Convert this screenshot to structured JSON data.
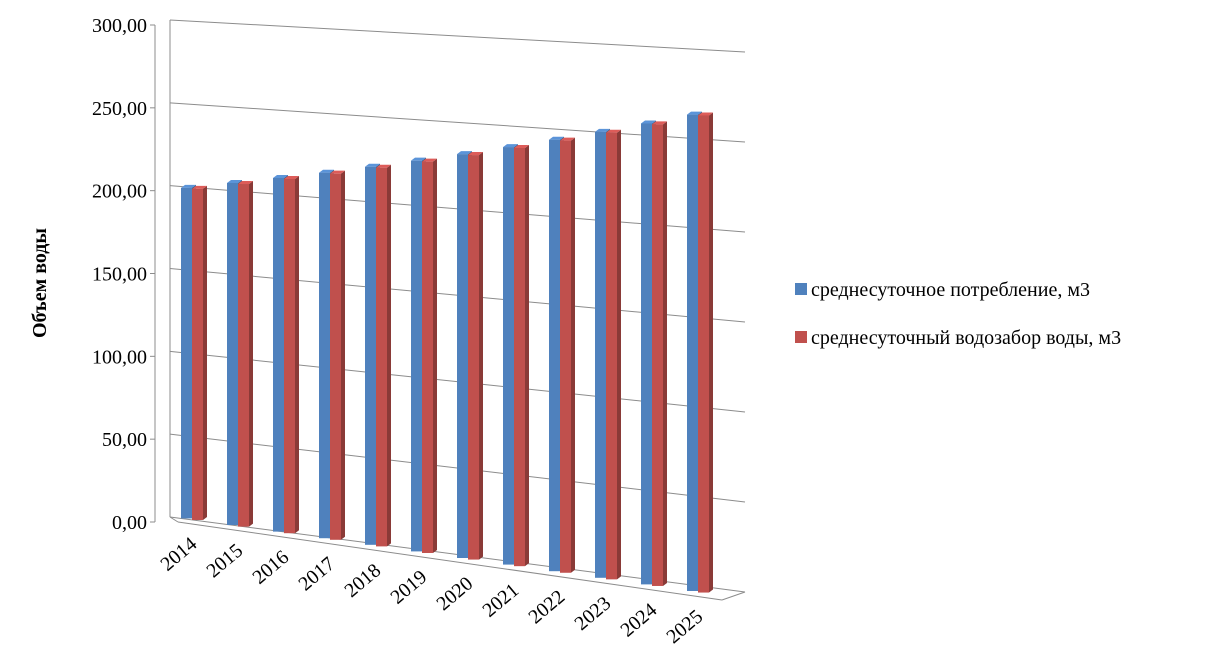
{
  "chart_data": {
    "type": "bar",
    "title": "",
    "xlabel": "",
    "ylabel": "Объем воды",
    "ylim": [
      0,
      300
    ],
    "y_ticks": [
      "0,00",
      "50,00",
      "100,00",
      "150,00",
      "200,00",
      "250,00",
      "300,00"
    ],
    "categories": [
      "2014",
      "2015",
      "2016",
      "2017",
      "2018",
      "2019",
      "2020",
      "2021",
      "2022",
      "2023",
      "2024",
      "2025"
    ],
    "series": [
      {
        "name": "среднесуточное потребление, м3",
        "color": "#4F81BD",
        "values": [
          199.2,
          204.7,
          210.2,
          215.8,
          221.7,
          227.6,
          233.7,
          240.0,
          246.4,
          253.0,
          259.8,
          266.8
        ]
      },
      {
        "name": "среднесуточный водозабор воды, м3",
        "color": "#C0504D",
        "values": [
          199.2,
          204.7,
          210.2,
          215.8,
          221.7,
          227.6,
          233.7,
          240.0,
          246.4,
          253.0,
          259.8,
          266.8
        ]
      }
    ],
    "grid": true,
    "legend_position": "right",
    "style": "3d-clustered-column"
  }
}
